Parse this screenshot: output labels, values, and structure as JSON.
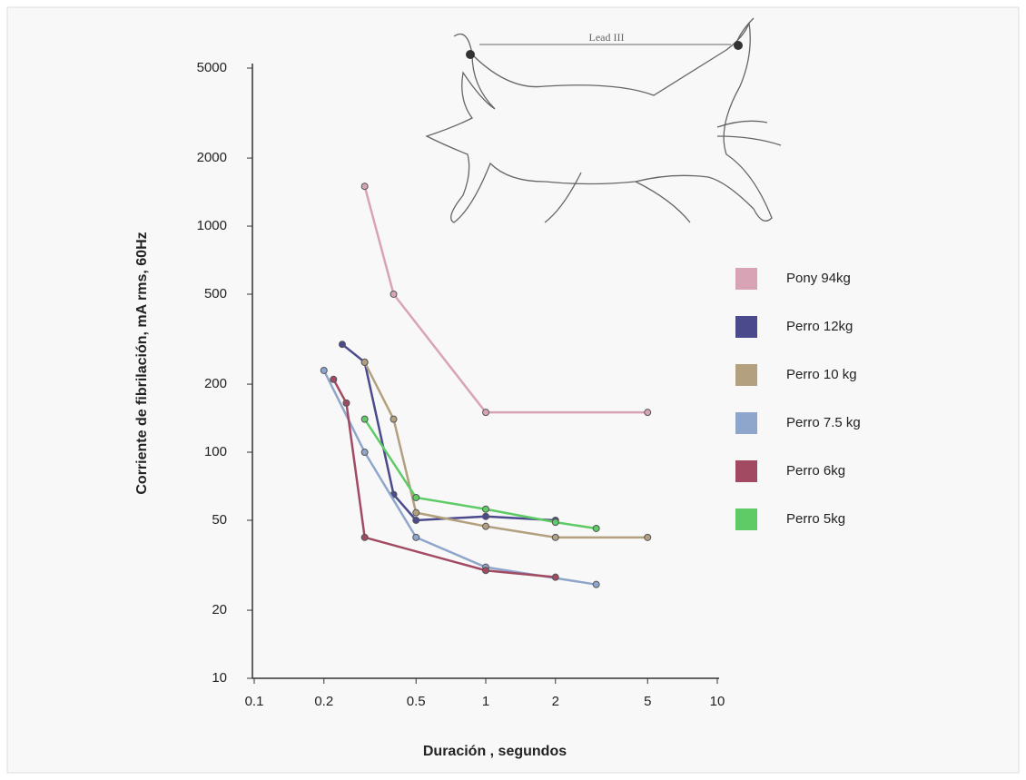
{
  "chart_data": {
    "type": "line",
    "annotation": "Lead III",
    "x_label": "Duración , segundos",
    "y_label": "Corriente de fibrilación, mA rms, 60Hz",
    "xlim": [
      0.1,
      10
    ],
    "ylim": [
      10,
      5000
    ],
    "log_x": true,
    "log_y": true,
    "xticks": [
      0.1,
      0.2,
      0.5,
      1,
      2,
      5,
      10
    ],
    "yticks": [
      10,
      20,
      50,
      100,
      200,
      500,
      1000,
      2000,
      5000
    ],
    "series": [
      {
        "name": "Pony 94kg",
        "color": "#d9a3b6",
        "x": [
          0.3,
          0.4,
          1,
          5
        ],
        "values": [
          1500,
          500,
          150,
          150
        ]
      },
      {
        "name": "Perro 12kg",
        "color": "#4b4a8c",
        "x": [
          0.24,
          0.3,
          0.4,
          0.5,
          1,
          2
        ],
        "values": [
          300,
          250,
          65,
          50,
          52,
          50
        ]
      },
      {
        "name": "Perro 10 kg",
        "color": "#b2a07e",
        "x": [
          0.3,
          0.4,
          0.5,
          1,
          2,
          5
        ],
        "values": [
          250,
          140,
          54,
          47,
          42,
          42
        ]
      },
      {
        "name": "Perro 7.5 kg",
        "color": "#8fa6cc",
        "x": [
          0.2,
          0.3,
          0.5,
          1,
          3
        ],
        "values": [
          230,
          100,
          42,
          31,
          26
        ]
      },
      {
        "name": "Perro 6kg",
        "color": "#a34a63",
        "x": [
          0.22,
          0.25,
          0.3,
          1,
          2
        ],
        "values": [
          210,
          165,
          42,
          30,
          28
        ]
      },
      {
        "name": "Perro 5kg",
        "color": "#5ecb66",
        "x": [
          0.3,
          0.5,
          1,
          2,
          3
        ],
        "values": [
          140,
          63,
          56,
          49,
          46
        ]
      }
    ]
  }
}
